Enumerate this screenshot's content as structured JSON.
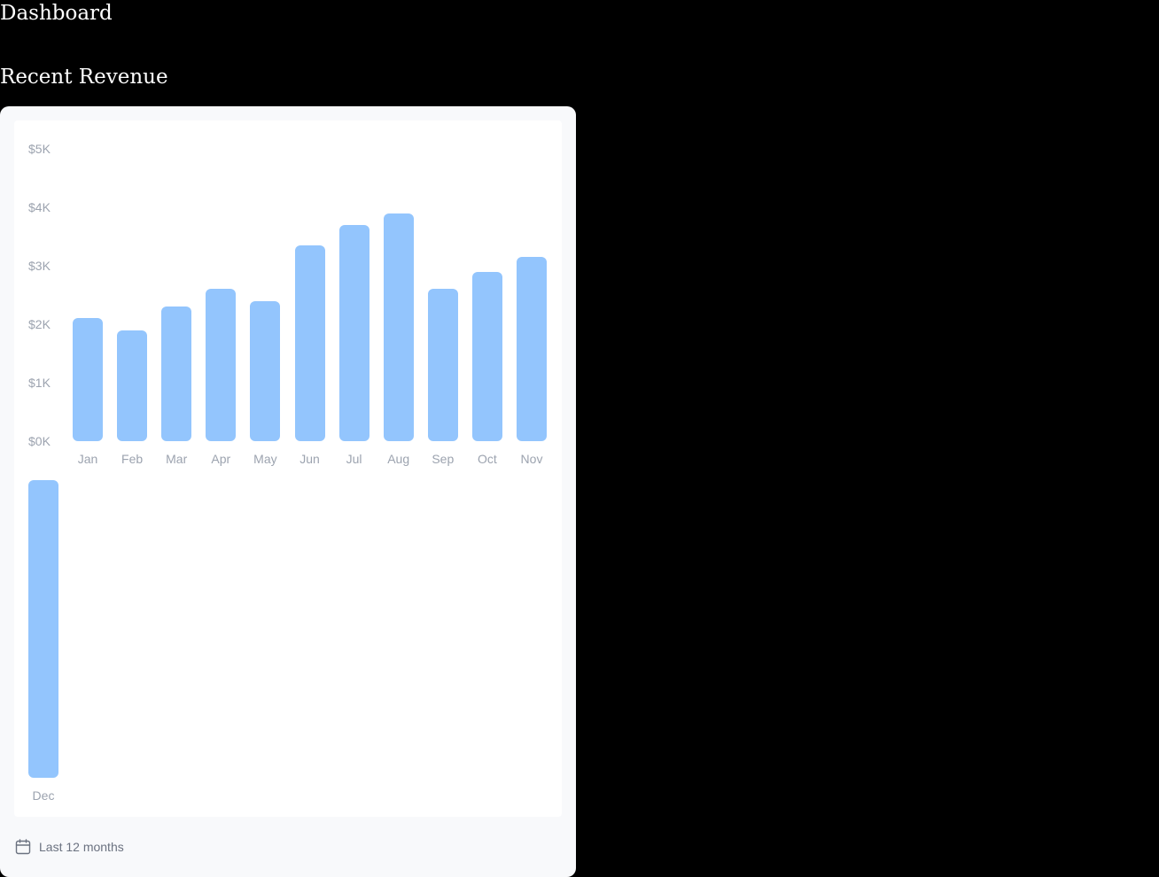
{
  "header": {
    "title": "Dashboard"
  },
  "revenue_section": {
    "title": "Recent Revenue",
    "footer_label": "Last 12 months",
    "footer_icon": "calendar-icon"
  },
  "colors": {
    "bar": "#93c5fd",
    "tick_text": "#9ca3af",
    "background": "#000000",
    "card": "#f8f9fb"
  },
  "chart_data": {
    "type": "bar",
    "categories": [
      "Jan",
      "Feb",
      "Mar",
      "Apr",
      "May",
      "Jun",
      "Jul",
      "Aug",
      "Sep",
      "Oct",
      "Nov",
      "Dec"
    ],
    "values": [
      2100,
      1900,
      2300,
      2600,
      2400,
      3350,
      3700,
      3900,
      2600,
      2900,
      3150,
      5100
    ],
    "yticks": [
      "$0K",
      "$1K",
      "$2K",
      "$3K",
      "$4K",
      "$5K"
    ],
    "ylim": [
      0,
      5000
    ],
    "xlabel": "",
    "ylabel": "",
    "grid": false,
    "legend": "none"
  }
}
